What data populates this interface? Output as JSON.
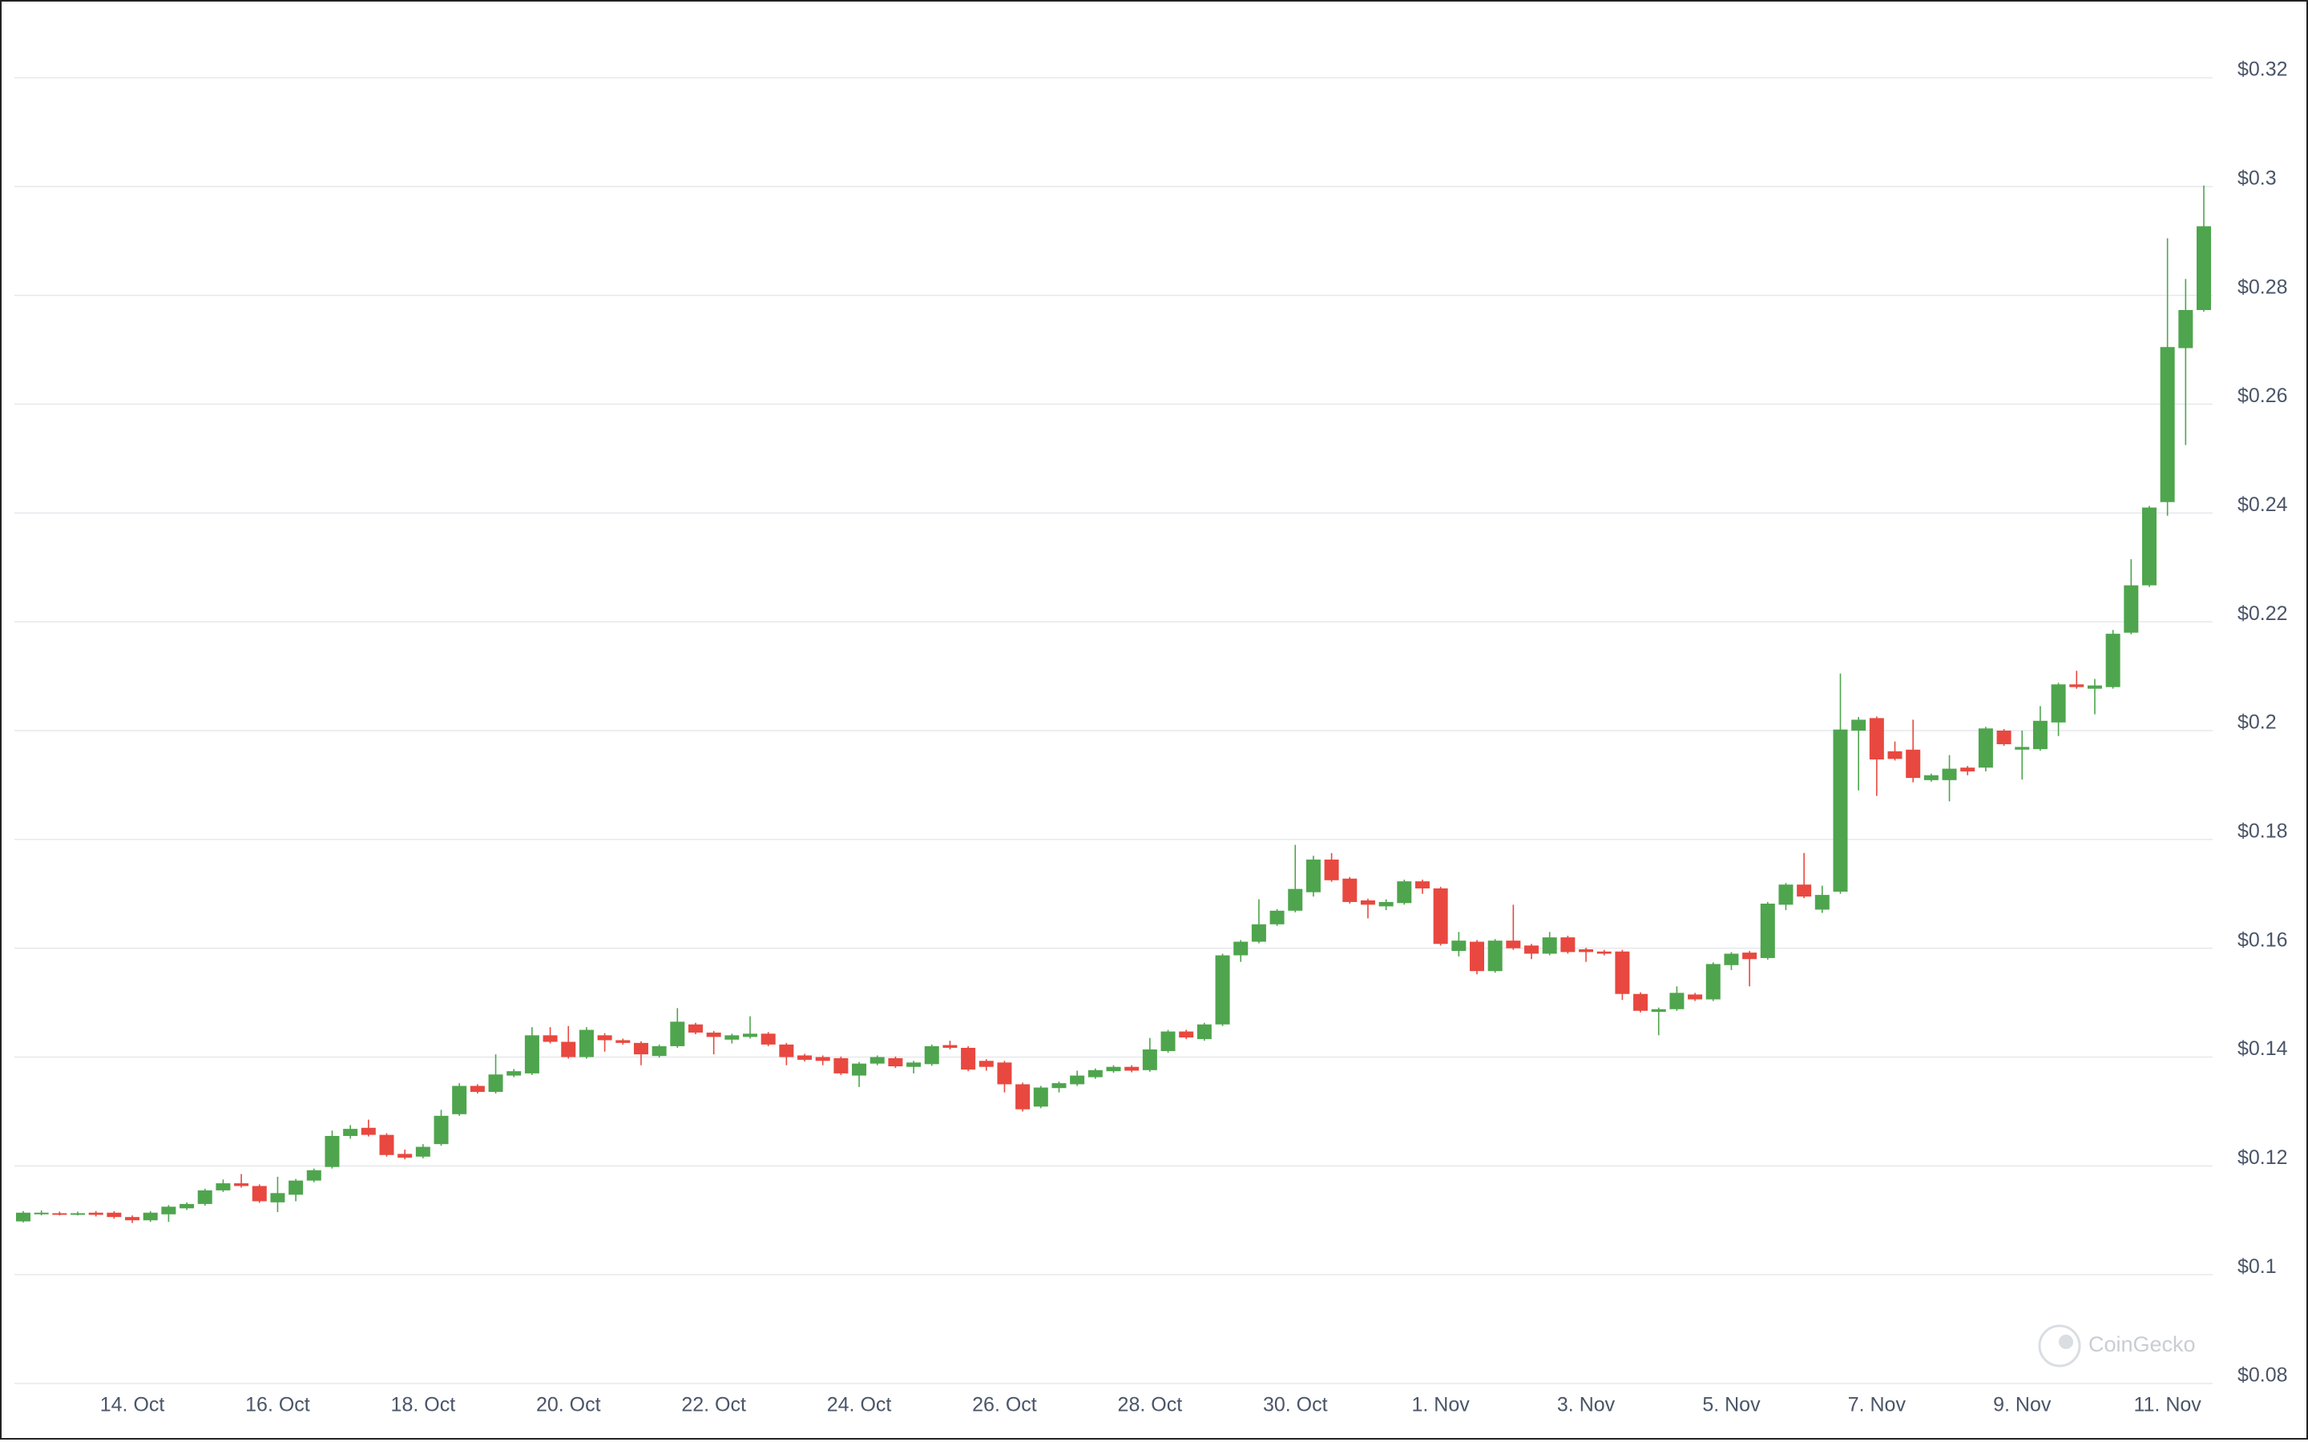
{
  "chart_data": {
    "type": "candlestick",
    "categories": [
      null,
      null,
      null,
      null,
      null,
      null,
      "14. Oct",
      null,
      null,
      null,
      null,
      null,
      null,
      null,
      "16. Oct",
      null,
      null,
      null,
      null,
      null,
      null,
      null,
      "18. Oct",
      null,
      null,
      null,
      null,
      null,
      null,
      null,
      "20. Oct",
      null,
      null,
      null,
      null,
      null,
      null,
      null,
      "22. Oct",
      null,
      null,
      null,
      null,
      null,
      null,
      null,
      "24. Oct",
      null,
      null,
      null,
      null,
      null,
      null,
      null,
      "26. Oct",
      null,
      null,
      null,
      null,
      null,
      null,
      null,
      "28. Oct",
      null,
      null,
      null,
      null,
      null,
      null,
      null,
      "30. Oct",
      null,
      null,
      null,
      null,
      null,
      null,
      null,
      "1. Nov",
      null,
      null,
      null,
      null,
      null,
      null,
      null,
      "3. Nov",
      null,
      null,
      null,
      null,
      null,
      null,
      null,
      "5. Nov",
      null,
      null,
      null,
      null,
      null,
      null,
      null,
      "7. Nov",
      null,
      null,
      null,
      null,
      null,
      null,
      null,
      "9. Nov",
      null,
      null,
      null,
      null,
      null,
      null,
      null,
      "11. Nov",
      null,
      null
    ],
    "open": [
      0.1098,
      0.1112,
      0.1113,
      0.1112,
      0.1114,
      0.1114,
      0.1106,
      0.11,
      0.1111,
      0.1122,
      0.113,
      0.1155,
      0.1168,
      0.1163,
      0.1133,
      0.1147,
      0.1173,
      0.1198,
      0.1255,
      0.127,
      0.1257,
      0.1222,
      0.1217,
      0.124,
      0.1295,
      0.1347,
      0.1336,
      0.1366,
      0.137,
      0.144,
      0.1428,
      0.14,
      0.144,
      0.1431,
      0.1426,
      0.1402,
      0.142,
      0.146,
      0.1445,
      0.1432,
      0.1437,
      0.1443,
      0.1423,
      0.1403,
      0.14,
      0.1398,
      0.1366,
      0.1388,
      0.1398,
      0.1382,
      0.1387,
      0.1422,
      0.1417,
      0.1393,
      0.139,
      0.135,
      0.1309,
      0.1343,
      0.135,
      0.1363,
      0.1374,
      0.1382,
      0.1376,
      0.1411,
      0.1447,
      0.1433,
      0.146,
      0.1587,
      0.1612,
      0.1644,
      0.1669,
      0.1703,
      0.1763,
      0.1728,
      0.1688,
      0.1677,
      0.1683,
      0.1723,
      0.171,
      0.1595,
      0.1612,
      0.1558,
      0.1614,
      0.1605,
      0.159,
      0.162,
      0.1598,
      0.1594,
      0.1594,
      0.1516,
      0.1483,
      0.1488,
      0.1515,
      0.1506,
      0.1569,
      0.1592,
      0.1582,
      0.168,
      0.1717,
      0.1671,
      0.1704,
      0.2,
      0.2023,
      0.1962,
      0.1965,
      0.1909,
      0.1909,
      0.1932,
      0.1932,
      0.2,
      0.1965,
      0.1966,
      0.2015,
      0.2085,
      0.2077,
      0.208,
      0.218,
      0.2267,
      0.242,
      0.2703,
      0.2773
    ],
    "high": [
      0.1117,
      0.1118,
      0.1116,
      0.1116,
      0.1117,
      0.1117,
      0.1109,
      0.1117,
      0.1128,
      0.1133,
      0.1158,
      0.1175,
      0.1185,
      0.1166,
      0.118,
      0.1176,
      0.1195,
      0.1265,
      0.1275,
      0.1285,
      0.126,
      0.123,
      0.124,
      0.1303,
      0.1352,
      0.135,
      0.1405,
      0.1378,
      0.1455,
      0.1455,
      0.1457,
      0.1455,
      0.1444,
      0.1434,
      0.1429,
      0.1423,
      0.149,
      0.1463,
      0.1448,
      0.1443,
      0.1475,
      0.1446,
      0.1426,
      0.1406,
      0.1403,
      0.1401,
      0.1391,
      0.1403,
      0.1401,
      0.1393,
      0.1423,
      0.143,
      0.142,
      0.1396,
      0.1393,
      0.1353,
      0.1347,
      0.1355,
      0.1375,
      0.1379,
      0.1385,
      0.1385,
      0.1435,
      0.145,
      0.145,
      0.1463,
      0.159,
      0.1615,
      0.169,
      0.1672,
      0.179,
      0.177,
      0.1775,
      0.1731,
      0.1691,
      0.169,
      0.1726,
      0.1726,
      0.1713,
      0.163,
      0.1615,
      0.1617,
      0.168,
      0.1608,
      0.163,
      0.1623,
      0.1601,
      0.1597,
      0.1597,
      0.1519,
      0.1491,
      0.153,
      0.1518,
      0.1574,
      0.1593,
      0.1595,
      0.1685,
      0.172,
      0.1775,
      0.1715,
      0.2105,
      0.2025,
      0.2026,
      0.198,
      0.202,
      0.1921,
      0.1955,
      0.1935,
      0.2007,
      0.2003,
      0.2,
      0.2045,
      0.2088,
      0.211,
      0.2095,
      0.2185,
      0.2315,
      0.2413,
      0.2905,
      0.283,
      0.3002
    ],
    "low": [
      0.1096,
      0.1109,
      0.1109,
      0.1109,
      0.1107,
      0.1103,
      0.1095,
      0.1097,
      0.1097,
      0.1119,
      0.1127,
      0.1152,
      0.116,
      0.1132,
      0.1115,
      0.1135,
      0.117,
      0.1195,
      0.125,
      0.1254,
      0.1217,
      0.1212,
      0.1214,
      0.1237,
      0.1292,
      0.1333,
      0.1333,
      0.1363,
      0.1367,
      0.1425,
      0.1397,
      0.1397,
      0.141,
      0.1423,
      0.1385,
      0.1399,
      0.1417,
      0.1442,
      0.1405,
      0.1425,
      0.1434,
      0.142,
      0.1385,
      0.1392,
      0.1385,
      0.1367,
      0.1345,
      0.1385,
      0.138,
      0.137,
      0.1384,
      0.1414,
      0.1374,
      0.1375,
      0.1335,
      0.13,
      0.1306,
      0.1335,
      0.1347,
      0.136,
      0.1371,
      0.1372,
      0.1373,
      0.1408,
      0.1433,
      0.143,
      0.1457,
      0.1575,
      0.1609,
      0.1641,
      0.1666,
      0.1695,
      0.1722,
      0.1682,
      0.1655,
      0.167,
      0.168,
      0.17,
      0.1605,
      0.1585,
      0.1552,
      0.1555,
      0.1597,
      0.158,
      0.1587,
      0.159,
      0.1575,
      0.1587,
      0.1505,
      0.1482,
      0.144,
      0.1485,
      0.1503,
      0.1503,
      0.156,
      0.153,
      0.1579,
      0.167,
      0.1692,
      0.1665,
      0.17,
      0.189,
      0.188,
      0.1945,
      0.1905,
      0.1906,
      0.187,
      0.1918,
      0.1925,
      0.1972,
      0.191,
      0.1963,
      0.199,
      0.2077,
      0.203,
      0.2077,
      0.2177,
      0.2264,
      0.2395,
      0.2525,
      0.277
    ],
    "close": [
      0.1114,
      0.1114,
      0.1112,
      0.1113,
      0.111,
      0.1106,
      0.11,
      0.1114,
      0.1125,
      0.113,
      0.1155,
      0.1168,
      0.1163,
      0.1135,
      0.115,
      0.1173,
      0.1192,
      0.1255,
      0.1268,
      0.1257,
      0.122,
      0.1215,
      0.1235,
      0.1292,
      0.1347,
      0.1336,
      0.1368,
      0.1374,
      0.144,
      0.1428,
      0.14,
      0.145,
      0.1431,
      0.1426,
      0.1405,
      0.142,
      0.1465,
      0.1445,
      0.1437,
      0.144,
      0.1443,
      0.1423,
      0.14,
      0.1395,
      0.1393,
      0.137,
      0.1388,
      0.14,
      0.1383,
      0.139,
      0.142,
      0.1417,
      0.1377,
      0.1382,
      0.135,
      0.1304,
      0.1344,
      0.1352,
      0.1366,
      0.1376,
      0.1382,
      0.1375,
      0.1414,
      0.1447,
      0.1436,
      0.146,
      0.1587,
      0.1612,
      0.1644,
      0.1669,
      0.1709,
      0.1763,
      0.1725,
      0.1685,
      0.168,
      0.1685,
      0.1723,
      0.171,
      0.1608,
      0.1614,
      0.1558,
      0.1614,
      0.16,
      0.159,
      0.162,
      0.1593,
      0.1593,
      0.159,
      0.1516,
      0.1485,
      0.1488,
      0.1518,
      0.1506,
      0.1571,
      0.159,
      0.158,
      0.1682,
      0.1717,
      0.1695,
      0.1698,
      0.2002,
      0.202,
      0.1947,
      0.1948,
      0.1913,
      0.1918,
      0.193,
      0.1925,
      0.2004,
      0.1975,
      0.197,
      0.2018,
      0.2085,
      0.208,
      0.2083,
      0.2178,
      0.2267,
      0.241,
      0.2705,
      0.2773,
      0.2927
    ],
    "up_color": "#4ea54d",
    "down_color": "#e8483f",
    "ylim": [
      0.08,
      0.32
    ],
    "yticks": [
      {
        "value": 0.08,
        "label": "$0.08"
      },
      {
        "value": 0.1,
        "label": "$0.1"
      },
      {
        "value": 0.12,
        "label": "$0.12"
      },
      {
        "value": 0.14,
        "label": "$0.14"
      },
      {
        "value": 0.16,
        "label": "$0.16"
      },
      {
        "value": 0.18,
        "label": "$0.18"
      },
      {
        "value": 0.2,
        "label": "$0.2"
      },
      {
        "value": 0.22,
        "label": "$0.22"
      },
      {
        "value": 0.24,
        "label": "$0.24"
      },
      {
        "value": 0.26,
        "label": "$0.26"
      },
      {
        "value": 0.28,
        "label": "$0.28"
      },
      {
        "value": 0.3,
        "label": "$0.3"
      },
      {
        "value": 0.32,
        "label": "$0.32"
      }
    ],
    "grid": true,
    "watermark": "CoinGecko"
  }
}
